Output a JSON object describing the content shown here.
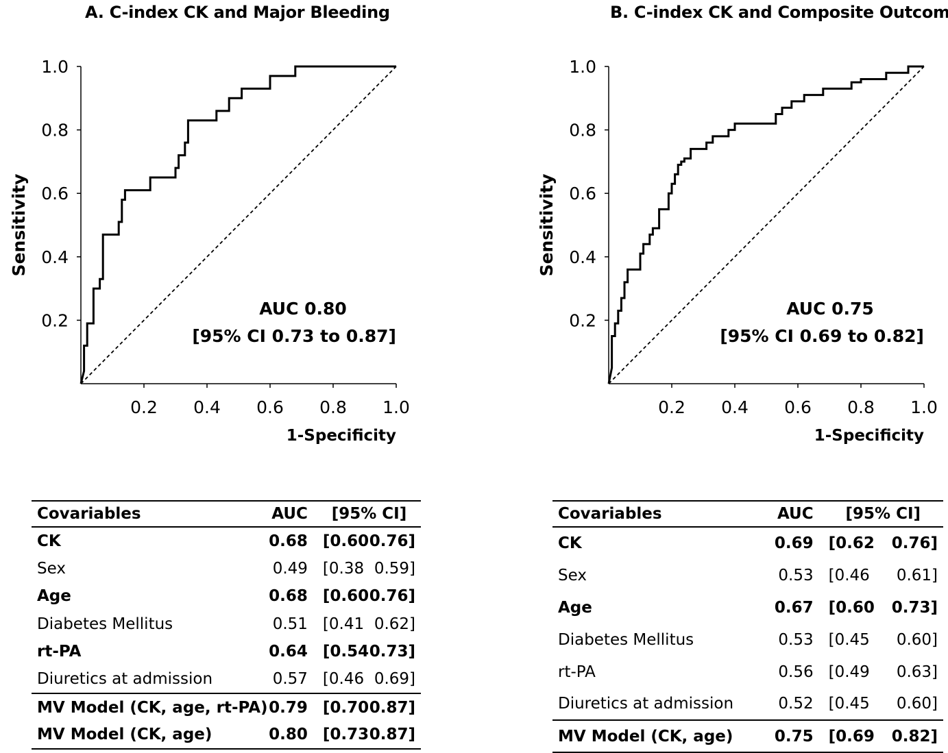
{
  "chart_data": [
    {
      "type": "line",
      "title": "A. C-index CK and Major Bleeding",
      "xlabel": "1-Specificity",
      "ylabel": "Sensitivity",
      "xlim": [
        0,
        1
      ],
      "ylim": [
        0,
        1
      ],
      "xticks": [
        "0.2",
        "0.4",
        "0.6",
        "0.8",
        "1.0"
      ],
      "yticks": [
        "0.2",
        "0.4",
        "0.6",
        "0.8",
        "1.0"
      ],
      "annotation": [
        "AUC 0.80",
        "[95% CI 0.73 to 0.87]"
      ],
      "series": [
        {
          "x": [
            0,
            0.01,
            0.01,
            0.02,
            0.02,
            0.04,
            0.04,
            0.06,
            0.06,
            0.07,
            0.07,
            0.12,
            0.12,
            0.13,
            0.13,
            0.14,
            0.14,
            0.22,
            0.22,
            0.3,
            0.3,
            0.31,
            0.31,
            0.33,
            0.33,
            0.34,
            0.34,
            0.43,
            0.43,
            0.47,
            0.47,
            0.51,
            0.51,
            0.6,
            0.6,
            0.68,
            0.68,
            1.0
          ],
          "y": [
            0,
            0.04,
            0.12,
            0.12,
            0.19,
            0.19,
            0.3,
            0.3,
            0.33,
            0.33,
            0.47,
            0.47,
            0.51,
            0.51,
            0.58,
            0.58,
            0.61,
            0.61,
            0.65,
            0.65,
            0.68,
            0.68,
            0.72,
            0.72,
            0.76,
            0.76,
            0.83,
            0.83,
            0.86,
            0.86,
            0.9,
            0.9,
            0.93,
            0.93,
            0.97,
            0.97,
            1.0,
            1.0
          ]
        },
        {
          "x": [
            0,
            1
          ],
          "y": [
            0,
            1
          ]
        }
      ]
    },
    {
      "type": "line",
      "title": "B. C-index CK and Composite Outcome",
      "xlabel": "1-Specificity",
      "ylabel": "Sensitivity",
      "xlim": [
        0,
        1
      ],
      "ylim": [
        0,
        1
      ],
      "xticks": [
        "0.2",
        "0.4",
        "0.6",
        "0.8",
        "1.0"
      ],
      "yticks": [
        "0.2",
        "0.4",
        "0.6",
        "0.8",
        "1.0"
      ],
      "annotation": [
        "AUC 0.75",
        "[95% CI 0.69 to 0.82]"
      ],
      "series": [
        {
          "x": [
            0,
            0.01,
            0.01,
            0.02,
            0.02,
            0.03,
            0.03,
            0.04,
            0.04,
            0.05,
            0.05,
            0.06,
            0.06,
            0.1,
            0.1,
            0.11,
            0.11,
            0.13,
            0.13,
            0.14,
            0.14,
            0.16,
            0.16,
            0.19,
            0.19,
            0.2,
            0.2,
            0.21,
            0.21,
            0.22,
            0.22,
            0.23,
            0.23,
            0.24,
            0.24,
            0.26,
            0.26,
            0.31,
            0.31,
            0.33,
            0.33,
            0.38,
            0.38,
            0.4,
            0.4,
            0.53,
            0.53,
            0.55,
            0.55,
            0.58,
            0.58,
            0.62,
            0.62,
            0.65,
            0.65,
            0.68,
            0.68,
            0.77,
            0.77,
            0.8,
            0.8,
            0.88,
            0.88,
            0.95,
            0.95,
            0.97,
            0.97,
            1.0
          ],
          "y": [
            0,
            0.05,
            0.15,
            0.15,
            0.19,
            0.19,
            0.23,
            0.23,
            0.27,
            0.27,
            0.32,
            0.32,
            0.36,
            0.36,
            0.41,
            0.41,
            0.44,
            0.44,
            0.47,
            0.47,
            0.49,
            0.49,
            0.55,
            0.55,
            0.6,
            0.6,
            0.63,
            0.63,
            0.66,
            0.66,
            0.69,
            0.69,
            0.7,
            0.7,
            0.71,
            0.71,
            0.74,
            0.74,
            0.76,
            0.76,
            0.78,
            0.78,
            0.8,
            0.8,
            0.82,
            0.82,
            0.85,
            0.85,
            0.87,
            0.87,
            0.89,
            0.89,
            0.91,
            0.91,
            0.91,
            0.91,
            0.93,
            0.93,
            0.95,
            0.95,
            0.96,
            0.96,
            0.98,
            0.98,
            1.0,
            1.0,
            1.0,
            1.0
          ]
        },
        {
          "x": [
            0,
            1
          ],
          "y": [
            0,
            1
          ]
        }
      ]
    }
  ],
  "table_a": {
    "header": {
      "covariables": "Covariables",
      "auc": "AUC",
      "ci": "[95% CI]"
    },
    "rows": [
      {
        "label": "CK",
        "auc": "0.68",
        "lo": "[0.60",
        "hi": "0.76]"
      },
      {
        "label": "Sex",
        "auc": "0.49",
        "lo": "[0.38",
        "hi": "0.59]"
      },
      {
        "label": "Age",
        "auc": "0.68",
        "lo": "[0.60",
        "hi": "0.76]"
      },
      {
        "label": "Diabetes Mellitus",
        "auc": "0.51",
        "lo": "[0.41",
        "hi": "0.62]"
      },
      {
        "label": "rt-PA",
        "auc": "0.64",
        "lo": "[0.54",
        "hi": "0.73]"
      },
      {
        "label": "Diuretics at admission",
        "auc": "0.57",
        "lo": "[0.46",
        "hi": "0.69]"
      },
      {
        "label": "MV Model (CK, age, rt-PA)",
        "auc": "0.79",
        "lo": "[0.70",
        "hi": "0.87]"
      },
      {
        "label": "MV Model (CK, age)",
        "auc": "0.80",
        "lo": "[0.73",
        "hi": "0.87]"
      }
    ]
  },
  "table_b": {
    "header": {
      "covariables": "Covariables",
      "auc": "AUC",
      "ci": "[95% CI]"
    },
    "rows": [
      {
        "label": "CK",
        "auc": "0.69",
        "lo": "[0.62",
        "hi": "0.76]"
      },
      {
        "label": "Sex",
        "auc": "0.53",
        "lo": "[0.46",
        "hi": "0.61]"
      },
      {
        "label": "Age",
        "auc": "0.67",
        "lo": "[0.60",
        "hi": "0.73]"
      },
      {
        "label": "Diabetes Mellitus",
        "auc": "0.53",
        "lo": "[0.45",
        "hi": "0.60]"
      },
      {
        "label": "rt-PA",
        "auc": "0.56",
        "lo": "[0.49",
        "hi": "0.63]"
      },
      {
        "label": "Diuretics at admission",
        "auc": "0.52",
        "lo": "[0.45",
        "hi": "0.60]"
      },
      {
        "label": "MV Model (CK, age)",
        "auc": "0.75",
        "lo": "[0.69",
        "hi": "0.82]"
      }
    ]
  }
}
